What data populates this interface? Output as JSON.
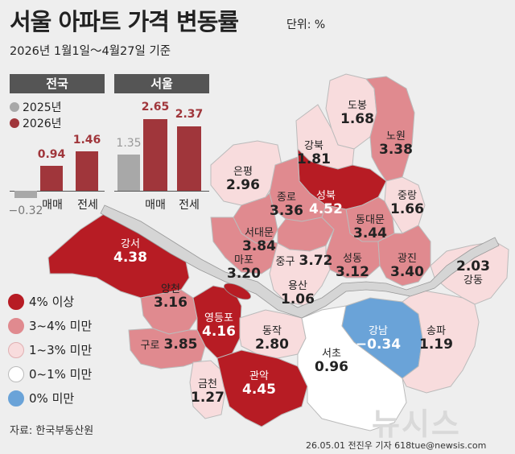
{
  "title": "서울 아파트 가격 변동률",
  "unit": "단위: %",
  "subtitle": "2026년 1월1일～4월27일 기준",
  "bar_chart": {
    "panels": [
      "전국",
      "서울"
    ],
    "legend": [
      {
        "name": "2025년",
        "color": "#a8a8a8"
      },
      {
        "name": "2026년",
        "color": "#a0363b"
      }
    ],
    "categories": [
      "매매",
      "전세"
    ]
  },
  "chart_data": {
    "type": "bar",
    "panels": [
      {
        "name": "전국",
        "categories": [
          "매매",
          "전세"
        ],
        "series": [
          {
            "name": "2025년",
            "values": [
              -0.32,
              null
            ]
          },
          {
            "name": "2026년",
            "values": [
              0.94,
              1.46
            ]
          }
        ]
      },
      {
        "name": "서울",
        "categories": [
          "매매",
          "전세"
        ],
        "series": [
          {
            "name": "2025년",
            "values": [
              1.35,
              null
            ]
          },
          {
            "name": "2026년",
            "values": [
              2.65,
              2.37
            ]
          }
        ]
      }
    ]
  },
  "value_labels": {
    "nat_2025_sale": "−0.32",
    "nat_2026_sale": "0.94",
    "nat_2026_rent": "1.46",
    "seoul_2025_sale": "1.35",
    "seoul_2026_sale": "2.65",
    "seoul_2026_rent": "2.37"
  },
  "map_legend": [
    {
      "label": "4% 이상",
      "color": "#b71c24"
    },
    {
      "label": "3~4% 미만",
      "color": "#e08a8f"
    },
    {
      "label": "1~3% 미만",
      "color": "#f8dcdd"
    },
    {
      "label": "0~1% 미만",
      "color": "#ffffff"
    },
    {
      "label": "0% 미만",
      "color": "#6aa3d8"
    }
  ],
  "districts": [
    {
      "name": "도봉",
      "value": "1.68"
    },
    {
      "name": "노원",
      "value": "3.38"
    },
    {
      "name": "강북",
      "value": "1.81"
    },
    {
      "name": "은평",
      "value": "2.96"
    },
    {
      "name": "성북",
      "value": "4.52"
    },
    {
      "name": "중랑",
      "value": "1.66"
    },
    {
      "name": "종로",
      "value": "3.36"
    },
    {
      "name": "동대문",
      "value": "3.44"
    },
    {
      "name": "서대문",
      "value": "3.84"
    },
    {
      "name": "중구",
      "value": "3.72"
    },
    {
      "name": "성동",
      "value": "3.12"
    },
    {
      "name": "광진",
      "value": "3.40"
    },
    {
      "name": "마포",
      "value": "3.20"
    },
    {
      "name": "용산",
      "value": "1.06"
    },
    {
      "name": "강서",
      "value": "4.38"
    },
    {
      "name": "양천",
      "value": "3.16"
    },
    {
      "name": "영등포",
      "value": "4.16"
    },
    {
      "name": "동작",
      "value": "2.80"
    },
    {
      "name": "구로",
      "value": "3.85"
    },
    {
      "name": "금천",
      "value": "1.27"
    },
    {
      "name": "관악",
      "value": "4.45"
    },
    {
      "name": "서초",
      "value": "0.96"
    },
    {
      "name": "강남",
      "value": "−0.34"
    },
    {
      "name": "송파",
      "value": "1.19"
    },
    {
      "name": "강동",
      "value": "2.03"
    }
  ],
  "source": "자료: 한국부동산원",
  "credit": "26.05.01  전진우 기자  618tue@newsis.com",
  "watermark": "뉴시스"
}
